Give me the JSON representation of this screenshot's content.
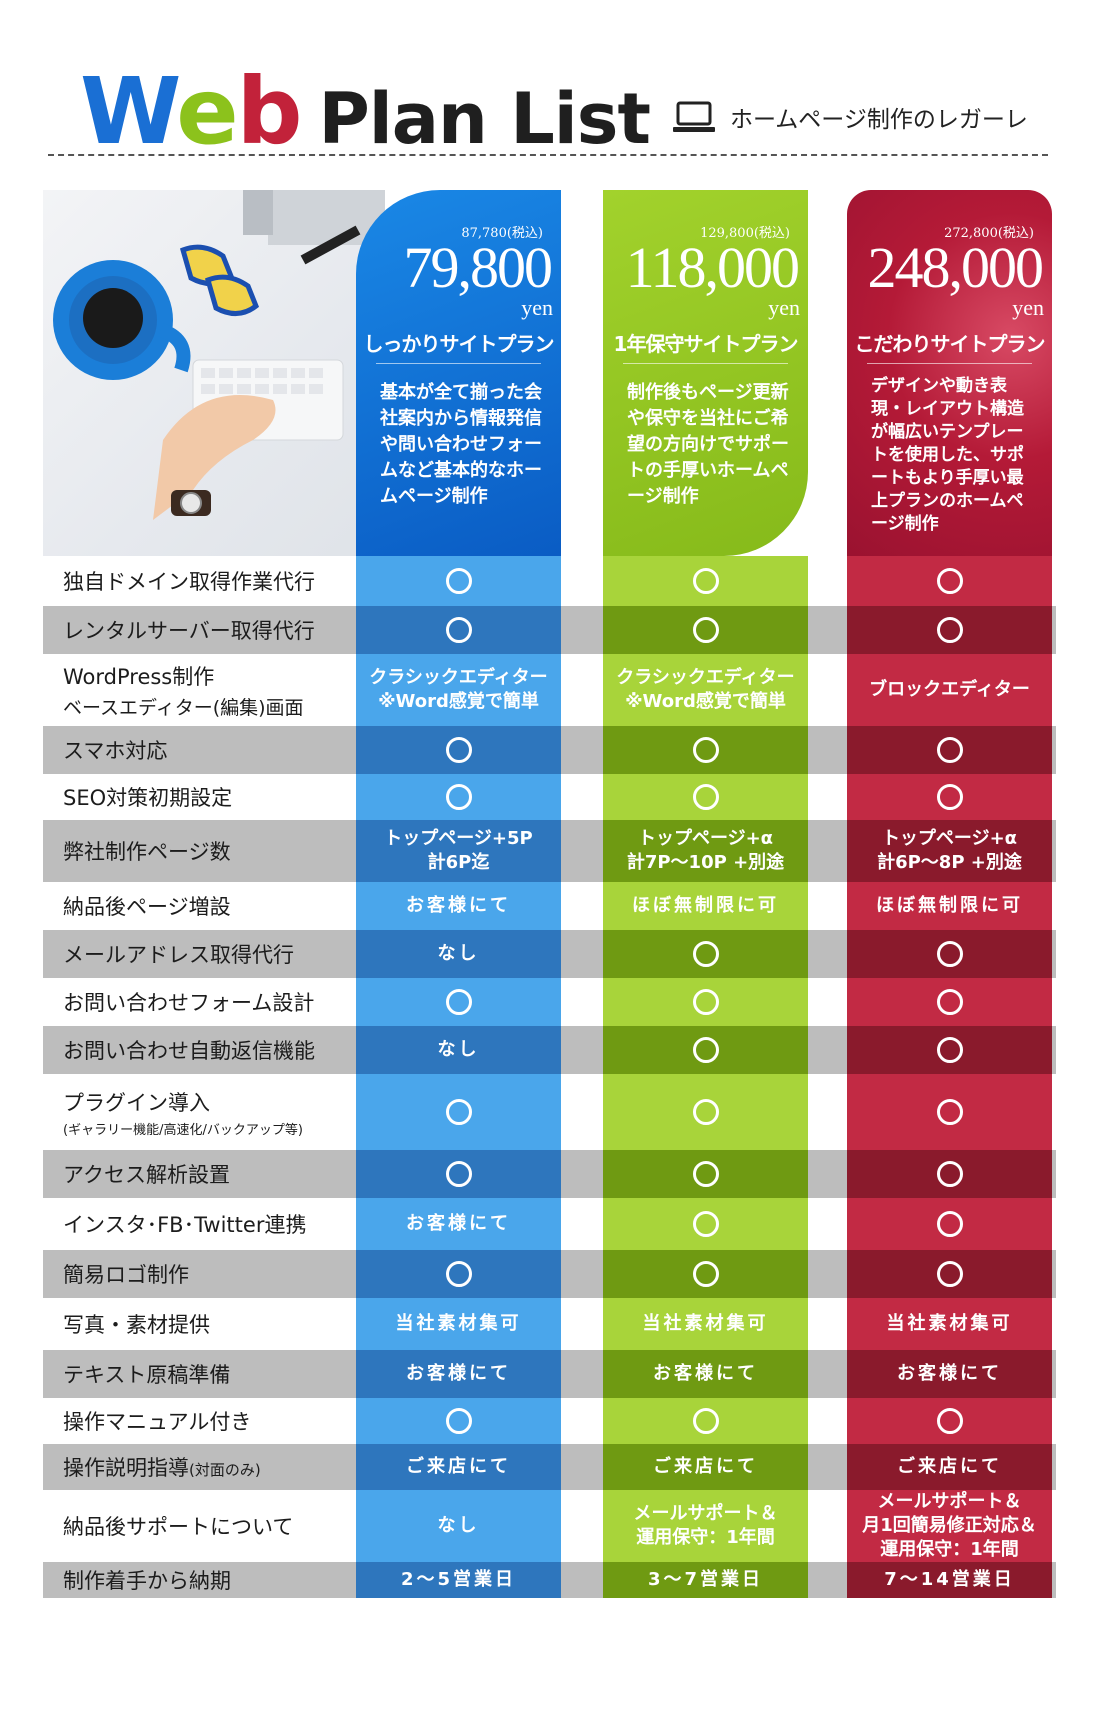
{
  "header": {
    "logo_w": "W",
    "logo_e": "e",
    "logo_b": "b",
    "logo_rest": "Plan List",
    "company": "ホームページ制作のレガーレ",
    "company_icon": "laptop-icon"
  },
  "photo": {
    "alt": "desk-photo"
  },
  "plans": [
    {
      "tax": "87,780(税込)",
      "price": "79,800",
      "yen": "yen",
      "name": "しっかりサイトプラン",
      "desc": "基本が全て揃った会社案内から情報発信や問い合わせフォームなど基本的なホームページ制作",
      "color": "#0a5cc4"
    },
    {
      "tax": "129,800(税込)",
      "price": "118,000",
      "yen": "yen",
      "name": "1年保守サイトプラン",
      "desc": "制作後もページ更新や保守を当社にご希望の方向けでサポートの手厚いホームページ制作",
      "color": "#86ba1a"
    },
    {
      "tax": "272,800(税込)",
      "price": "248,000",
      "yen": "yen",
      "name": "こだわりサイトプラン",
      "desc": "デザインや動き表現・レイアウト構造が幅広いテンプレートを使用した、サポートもより手厚い最上プランのホームページ制作",
      "color": "#b41a37"
    }
  ],
  "rows": [
    {
      "label": "独自ドメイン取得作業代行",
      "sub": "",
      "cells": [
        "○",
        "○",
        "○"
      ]
    },
    {
      "label": "レンタルサーバー取得代行",
      "sub": "",
      "cells": [
        "○",
        "○",
        "○"
      ]
    },
    {
      "label": "WordPress制作",
      "sub": "ベースエディター(編集)画面",
      "cells": [
        "クラシックエディター\n※Word感覚で簡単",
        "クラシックエディター\n※Word感覚で簡単",
        "ブロックエディター"
      ]
    },
    {
      "label": "スマホ対応",
      "sub": "",
      "cells": [
        "○",
        "○",
        "○"
      ]
    },
    {
      "label": "SEO対策初期設定",
      "sub": "",
      "cells": [
        "○",
        "○",
        "○"
      ]
    },
    {
      "label": "弊社制作ページ数",
      "sub": "",
      "cells": [
        "トップページ+5P\n計6P迄",
        "トップページ+α\n計7P〜10P +別途",
        "トップページ+α\n計6P〜8P +別途"
      ]
    },
    {
      "label": "納品後ページ増設",
      "sub": "",
      "cells": [
        "お客様にて",
        "ほぼ無制限に可",
        "ほぼ無制限に可"
      ]
    },
    {
      "label": "メールアドレス取得代行",
      "sub": "",
      "cells": [
        "なし",
        "○",
        "○"
      ]
    },
    {
      "label": "お問い合わせフォーム設計",
      "sub": "",
      "cells": [
        "○",
        "○",
        "○"
      ]
    },
    {
      "label": "お問い合わせ自動返信機能",
      "sub": "",
      "cells": [
        "なし",
        "○",
        "○"
      ]
    },
    {
      "label": "プラグイン導入",
      "sub": "(ギャラリー機能/高速化/バックアップ等)",
      "cells": [
        "○",
        "○",
        "○"
      ]
    },
    {
      "label": "アクセス解析設置",
      "sub": "",
      "cells": [
        "○",
        "○",
        "○"
      ]
    },
    {
      "label": "インスタ･FB･Twitter連携",
      "sub": "",
      "cells": [
        "お客様にて",
        "○",
        "○"
      ]
    },
    {
      "label": "簡易ロゴ制作",
      "sub": "",
      "cells": [
        "○",
        "○",
        "○"
      ]
    },
    {
      "label": "写真・素材提供",
      "sub": "",
      "cells": [
        "当社素材集可",
        "当社素材集可",
        "当社素材集可"
      ]
    },
    {
      "label": "テキスト原稿準備",
      "sub": "",
      "cells": [
        "お客様にて",
        "お客様にて",
        "お客様にて"
      ]
    },
    {
      "label": "操作マニュアル付き",
      "sub": "",
      "cells": [
        "○",
        "○",
        "○"
      ]
    },
    {
      "label": "操作説明指導",
      "sub_inline": "(対面のみ)",
      "sub": "",
      "cells": [
        "ご来店にて",
        "ご来店にて",
        "ご来店にて"
      ]
    },
    {
      "label": "納品後サポートについて",
      "sub": "",
      "cells": [
        "なし",
        "メールサポート＆\n運用保守：1年間",
        "メールサポート＆\n月1回簡易修正対応＆\n運用保守：1年間"
      ]
    },
    {
      "label": "制作着手から納期",
      "sub": "",
      "cells": [
        "2〜5営業日",
        "3〜7営業日",
        "7〜14営業日"
      ]
    }
  ]
}
